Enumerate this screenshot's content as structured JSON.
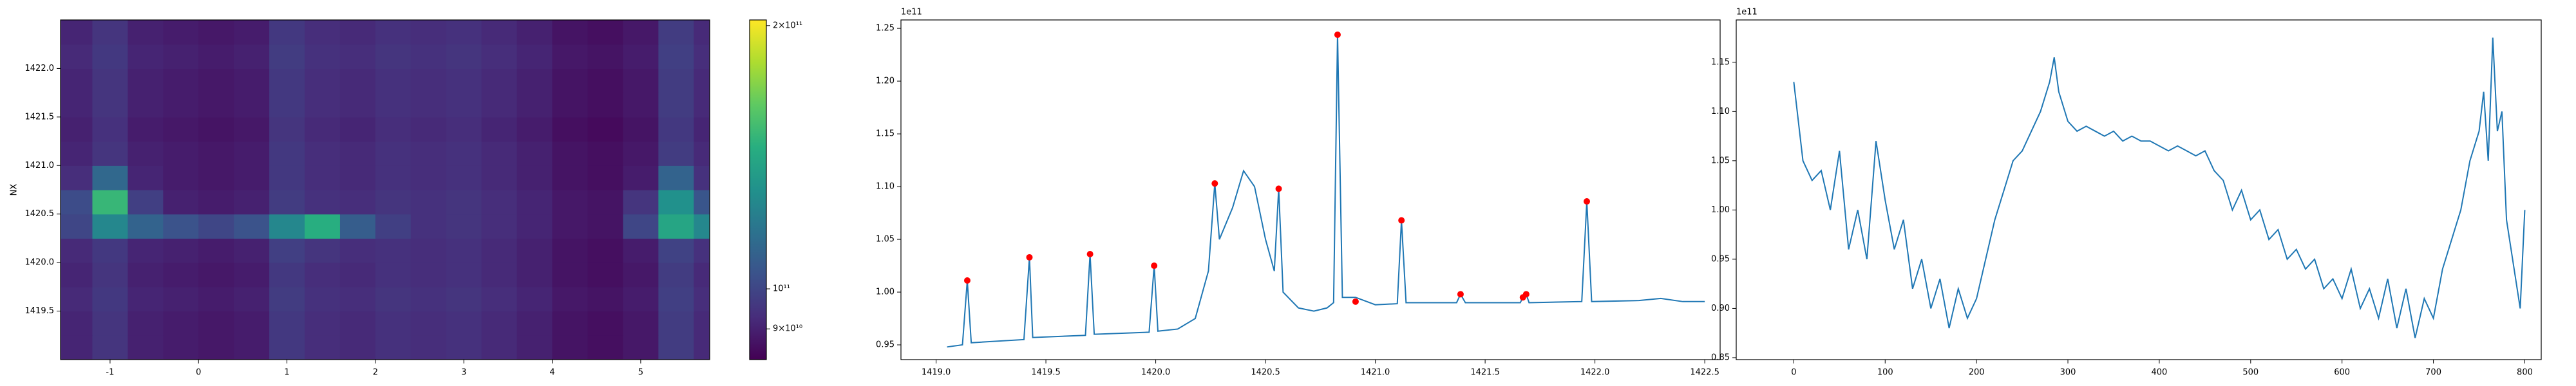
{
  "chart_data": [
    {
      "type": "heatmap",
      "ylabel": "NX",
      "colormap": "viridis",
      "colorscale": "log",
      "x": [
        -1.4,
        -1.0,
        -0.6,
        -0.2,
        0.2,
        0.6,
        1.0,
        1.4,
        1.8,
        2.2,
        2.6,
        3.0,
        3.4,
        3.8,
        4.2,
        4.6,
        5.0,
        5.4,
        5.8
      ],
      "y": [
        1419.125,
        1419.375,
        1419.625,
        1419.875,
        1420.125,
        1420.375,
        1420.625,
        1420.875,
        1421.125,
        1421.375,
        1421.625,
        1421.875,
        1422.125,
        1422.375
      ],
      "z": [
        [
          91000000000.0,
          95000000000.0,
          90000000000.0,
          89000000000.0,
          88000000000.0,
          89000000000.0,
          96000000000.0,
          93000000000.0,
          92000000000.0,
          94000000000.0,
          93000000000.0,
          94000000000.0,
          92000000000.0,
          90000000000.0,
          87000000000.0,
          86000000000.0,
          88000000000.0,
          97000000000.0,
          92000000000.0
        ],
        [
          91000000000.0,
          95000000000.0,
          90000000000.0,
          89000000000.0,
          88000000000.0,
          89000000000.0,
          96000000000.0,
          93000000000.0,
          92000000000.0,
          94000000000.0,
          93000000000.0,
          94000000000.0,
          92000000000.0,
          90000000000.0,
          87000000000.0,
          86000000000.0,
          88000000000.0,
          97000000000.0,
          92000000000.0
        ],
        [
          92000000000.0,
          96000000000.0,
          91000000000.0,
          90000000000.0,
          89000000000.0,
          90000000000.0,
          97000000000.0,
          94000000000.0,
          93000000000.0,
          95000000000.0,
          94000000000.0,
          95000000000.0,
          93000000000.0,
          91000000000.0,
          88000000000.0,
          87000000000.0,
          89000000000.0,
          98000000000.0,
          93000000000.0
        ],
        [
          91000000000.0,
          95000000000.0,
          90000000000.0,
          89000000000.0,
          88000000000.0,
          89000000000.0,
          96000000000.0,
          93000000000.0,
          92000000000.0,
          94000000000.0,
          93000000000.0,
          94000000000.0,
          92000000000.0,
          90000000000.0,
          87000000000.0,
          86000000000.0,
          88000000000.0,
          97000000000.0,
          92000000000.0
        ],
        [
          92000000000.0,
          96000000000.0,
          91000000000.0,
          90000000000.0,
          89000000000.0,
          90000000000.0,
          98000000000.0,
          95000000000.0,
          93000000000.0,
          94000000000.0,
          93000000000.0,
          94000000000.0,
          92000000000.0,
          90000000000.0,
          87000000000.0,
          86000000000.0,
          89000000000.0,
          99000000000.0,
          94000000000.0
        ],
        [
          100000000000.0,
          125000000000.0,
          110000000000.0,
          104000000000.0,
          100000000000.0,
          104000000000.0,
          125000000000.0,
          145000000000.0,
          108000000000.0,
          98000000000.0,
          94000000000.0,
          95000000000.0,
          93000000000.0,
          91000000000.0,
          88000000000.0,
          87000000000.0,
          100000000000.0,
          140000000000.0,
          125000000000.0
        ],
        [
          102000000000.0,
          150000000000.0,
          98000000000.0,
          90000000000.0,
          89000000000.0,
          90000000000.0,
          97000000000.0,
          94000000000.0,
          93000000000.0,
          95000000000.0,
          94000000000.0,
          95000000000.0,
          93000000000.0,
          91000000000.0,
          88000000000.0,
          87000000000.0,
          95000000000.0,
          130000000000.0,
          105000000000.0
        ],
        [
          93000000000.0,
          112000000000.0,
          91000000000.0,
          89000000000.0,
          88000000000.0,
          89000000000.0,
          96000000000.0,
          93000000000.0,
          92000000000.0,
          94000000000.0,
          93000000000.0,
          94000000000.0,
          92000000000.0,
          90000000000.0,
          87000000000.0,
          86000000000.0,
          89000000000.0,
          110000000000.0,
          94000000000.0
        ],
        [
          91000000000.0,
          95000000000.0,
          90000000000.0,
          89000000000.0,
          88000000000.0,
          89000000000.0,
          96000000000.0,
          93000000000.0,
          92000000000.0,
          94000000000.0,
          93000000000.0,
          94000000000.0,
          92000000000.0,
          90000000000.0,
          87000000000.0,
          86000000000.0,
          88000000000.0,
          97000000000.0,
          92000000000.0
        ],
        [
          90000000000.0,
          94000000000.0,
          89000000000.0,
          88000000000.0,
          87000000000.0,
          88000000000.0,
          95000000000.0,
          92000000000.0,
          91000000000.0,
          93000000000.0,
          92000000000.0,
          93000000000.0,
          91000000000.0,
          89000000000.0,
          86000000000.0,
          85000000000.0,
          87000000000.0,
          96000000000.0,
          91000000000.0
        ],
        [
          91000000000.0,
          95000000000.0,
          90000000000.0,
          89000000000.0,
          88000000000.0,
          89000000000.0,
          96000000000.0,
          93000000000.0,
          92000000000.0,
          94000000000.0,
          93000000000.0,
          94000000000.0,
          92000000000.0,
          90000000000.0,
          87000000000.0,
          86000000000.0,
          88000000000.0,
          97000000000.0,
          92000000000.0
        ],
        [
          91000000000.0,
          95000000000.0,
          90000000000.0,
          89000000000.0,
          88000000000.0,
          89000000000.0,
          96000000000.0,
          93000000000.0,
          92000000000.0,
          94000000000.0,
          93000000000.0,
          94000000000.0,
          92000000000.0,
          90000000000.0,
          87000000000.0,
          86000000000.0,
          88000000000.0,
          97000000000.0,
          92000000000.0
        ],
        [
          92000000000.0,
          96000000000.0,
          91000000000.0,
          90000000000.0,
          89000000000.0,
          90000000000.0,
          97000000000.0,
          94000000000.0,
          93000000000.0,
          95000000000.0,
          94000000000.0,
          95000000000.0,
          93000000000.0,
          91000000000.0,
          88000000000.0,
          87000000000.0,
          89000000000.0,
          98000000000.0,
          93000000000.0
        ],
        [
          91000000000.0,
          95000000000.0,
          90000000000.0,
          89000000000.0,
          88000000000.0,
          89000000000.0,
          96000000000.0,
          93000000000.0,
          92000000000.0,
          94000000000.0,
          93000000000.0,
          94000000000.0,
          92000000000.0,
          90000000000.0,
          87000000000.0,
          86000000000.0,
          88000000000.0,
          97000000000.0,
          92000000000.0
        ]
      ],
      "xlim": [
        -1.56,
        5.78
      ],
      "ylim": [
        1419.0,
        1422.5
      ],
      "xticks": [
        -1,
        0,
        1,
        2,
        3,
        4,
        5
      ],
      "yticks": [
        1419.5,
        {
          "value": 1420,
          "label": "1420.0"
        },
        1420.5,
        {
          "value": 1421,
          "label": "1421.0"
        },
        1421.5,
        {
          "value": 1422,
          "label": "1422.0"
        }
      ],
      "clim": [
        83000000000.0,
        203000000000.0
      ],
      "cticks": [
        {
          "value": 90000000000.0,
          "label": "9×10¹⁰"
        },
        {
          "value": 100000000000.0,
          "label": "10¹¹"
        },
        {
          "value": 200000000000.0,
          "label": "2×10¹¹"
        }
      ]
    },
    {
      "type": "line",
      "offset_label": "1e11",
      "color": "#1f77b4",
      "x": [
        1419.05,
        1419.12,
        1419.142,
        1419.16,
        1419.4,
        1419.425,
        1419.44,
        1419.68,
        1419.701,
        1419.72,
        1419.97,
        1419.993,
        1420.01,
        1420.1,
        1420.18,
        1420.24,
        1420.269,
        1420.29,
        1420.35,
        1420.4,
        1420.45,
        1420.5,
        1420.54,
        1420.56,
        1420.58,
        1420.65,
        1420.72,
        1420.78,
        1420.81,
        1420.828,
        1420.85,
        1420.91,
        1421.0,
        1421.1,
        1421.119,
        1421.14,
        1421.37,
        1421.388,
        1421.41,
        1421.66,
        1421.672,
        1421.687,
        1421.7,
        1421.94,
        1421.963,
        1421.985,
        1422.2,
        1422.3,
        1422.4,
        1422.5
      ],
      "values": [
        0.948,
        0.95,
        1.011,
        0.952,
        0.955,
        1.033,
        0.957,
        0.959,
        1.036,
        0.96,
        0.962,
        1.025,
        0.963,
        0.965,
        0.975,
        1.02,
        1.103,
        1.05,
        1.08,
        1.115,
        1.1,
        1.05,
        1.02,
        1.098,
        1.0,
        0.985,
        0.982,
        0.985,
        0.99,
        1.244,
        0.995,
        0.995,
        0.988,
        0.989,
        1.068,
        0.99,
        0.99,
        0.998,
        0.99,
        0.99,
        0.995,
        0.998,
        0.99,
        0.991,
        1.086,
        0.991,
        0.992,
        0.994,
        0.991,
        0.991
      ],
      "markers": {
        "color": "#ff0000",
        "x": [
          1419.142,
          1419.425,
          1419.701,
          1419.993,
          1420.269,
          1420.56,
          1420.828,
          1420.91,
          1421.119,
          1421.388,
          1421.672,
          1421.687,
          1421.963
        ],
        "values": [
          1.011,
          1.033,
          1.036,
          1.025,
          1.103,
          1.098,
          1.244,
          0.991,
          1.068,
          0.998,
          0.995,
          0.998,
          1.086
        ]
      },
      "xlim": [
        1418.84,
        1422.57
      ],
      "ylim": [
        0.936,
        1.258
      ],
      "xticks": [
        {
          "value": 1419,
          "label": "1419.0"
        },
        1419.5,
        {
          "value": 1420,
          "label": "1420.0"
        },
        1420.5,
        {
          "value": 1421,
          "label": "1421.0"
        },
        1421.5,
        {
          "value": 1422,
          "label": "1422.0"
        },
        1422.5
      ],
      "yticks": [
        0.95,
        {
          "value": 1,
          "label": "1.00"
        },
        1.05,
        {
          "value": 1.1,
          "label": "1.10"
        },
        1.15,
        {
          "value": 1.2,
          "label": "1.20"
        },
        1.25
      ]
    },
    {
      "type": "line",
      "offset_label": "1e11",
      "color": "#1f77b4",
      "x": [
        0,
        10,
        20,
        30,
        40,
        50,
        60,
        70,
        80,
        90,
        100,
        110,
        120,
        130,
        140,
        150,
        160,
        170,
        180,
        190,
        200,
        210,
        220,
        230,
        240,
        250,
        260,
        270,
        280,
        285,
        290,
        300,
        310,
        320,
        330,
        340,
        350,
        360,
        370,
        380,
        390,
        400,
        410,
        420,
        430,
        440,
        450,
        460,
        470,
        480,
        490,
        500,
        510,
        520,
        530,
        540,
        550,
        560,
        570,
        580,
        590,
        600,
        610,
        620,
        630,
        640,
        650,
        660,
        670,
        680,
        690,
        700,
        710,
        720,
        730,
        740,
        750,
        755,
        760,
        765,
        770,
        775,
        780,
        790,
        795,
        800
      ],
      "values": [
        1.13,
        1.05,
        1.03,
        1.04,
        1.0,
        1.06,
        0.96,
        1.0,
        0.95,
        1.07,
        1.01,
        0.96,
        0.99,
        0.92,
        0.95,
        0.9,
        0.93,
        0.88,
        0.92,
        0.89,
        0.91,
        0.95,
        0.99,
        1.02,
        1.05,
        1.06,
        1.08,
        1.1,
        1.13,
        1.155,
        1.12,
        1.09,
        1.08,
        1.085,
        1.08,
        1.075,
        1.08,
        1.07,
        1.075,
        1.07,
        1.07,
        1.065,
        1.06,
        1.065,
        1.06,
        1.055,
        1.06,
        1.04,
        1.03,
        1.0,
        1.02,
        0.99,
        1.0,
        0.97,
        0.98,
        0.95,
        0.96,
        0.94,
        0.95,
        0.92,
        0.93,
        0.91,
        0.94,
        0.9,
        0.92,
        0.89,
        0.93,
        0.88,
        0.92,
        0.87,
        0.91,
        0.89,
        0.94,
        0.97,
        1.0,
        1.05,
        1.08,
        1.12,
        1.05,
        1.175,
        1.08,
        1.1,
        0.99,
        0.93,
        0.9,
        1.0
      ],
      "xlim": [
        -63,
        818
      ],
      "ylim": [
        0.848,
        1.193
      ],
      "xticks": [
        0,
        100,
        200,
        300,
        400,
        500,
        600,
        700,
        800
      ],
      "yticks": [
        0.85,
        {
          "value": 0.9,
          "label": "0.90"
        },
        0.95,
        {
          "value": 1,
          "label": "1.00"
        },
        1.05,
        {
          "value": 1.1,
          "label": "1.10"
        },
        1.15
      ]
    }
  ]
}
